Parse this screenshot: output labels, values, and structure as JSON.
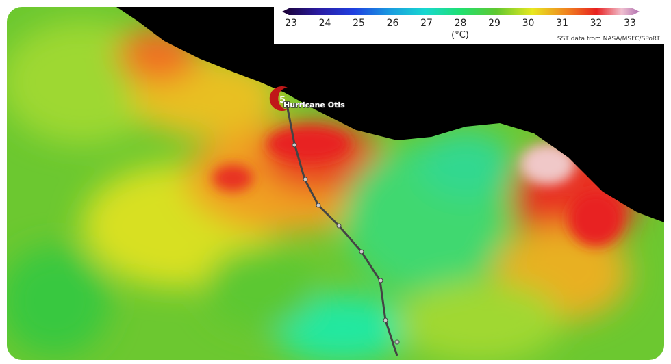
{
  "colorbar": {
    "ticks": [
      23,
      24,
      25,
      26,
      27,
      28,
      29,
      30,
      31,
      32,
      33
    ],
    "unit": "(°C)"
  },
  "credit": "SST data from NASA/MSFC/SPoRT",
  "storm": {
    "category": 5,
    "label": "Hurricane Otis"
  }
}
